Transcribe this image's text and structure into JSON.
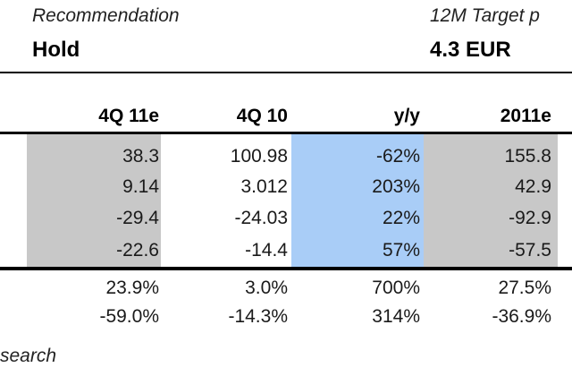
{
  "header": {
    "recommendation_label": "Recommendation",
    "recommendation_value": "Hold",
    "target_label": "12M Target p",
    "target_value": "4.3 EUR"
  },
  "table": {
    "columns": [
      "4Q 11e",
      "4Q 10",
      "y/y",
      "2011e"
    ],
    "main_rows": [
      [
        "38.3",
        "100.98",
        "-62%",
        "155.8"
      ],
      [
        "9.14",
        "3.012",
        "203%",
        "42.9"
      ],
      [
        "-29.4",
        "-24.03",
        "22%",
        "-92.9"
      ],
      [
        "-22.6",
        "-14.4",
        "57%",
        "-57.5"
      ]
    ],
    "ratio_rows": [
      [
        "23.9%",
        "3.0%",
        "700%",
        "27.5%"
      ],
      [
        "-59.0%",
        "-14.3%",
        "314%",
        "-36.9%"
      ]
    ]
  },
  "footer": {
    "source_text": "search"
  },
  "colors": {
    "grey_shade": "#c8c8c8",
    "blue_shade": "#a9cdf7",
    "rule": "#000000"
  }
}
